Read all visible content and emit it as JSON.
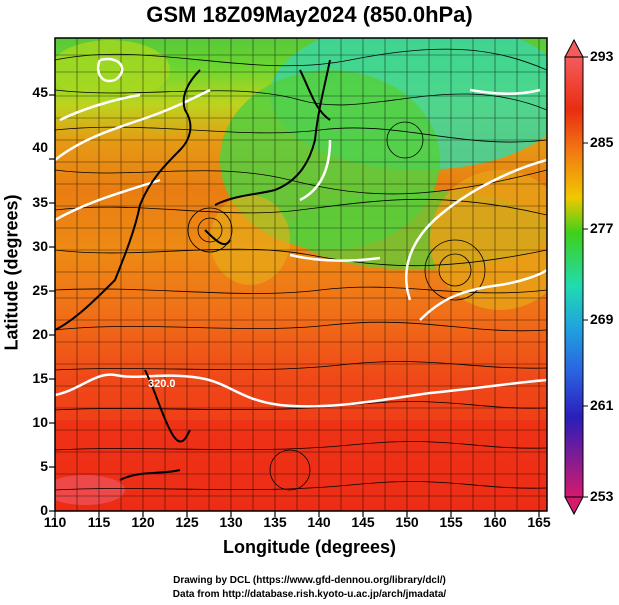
{
  "title": "GSM 18Z09May2024 (850.0hPa)",
  "x_axis": {
    "label": "Longitude (degrees)",
    "ticks": [
      "110",
      "115",
      "120",
      "125",
      "130",
      "135",
      "140",
      "145",
      "150",
      "155",
      "160",
      "165"
    ]
  },
  "y_axis": {
    "label": "Latitude  (degrees)",
    "ticks": [
      "0",
      "5",
      "10",
      "15",
      "20",
      "25",
      "30",
      "35",
      "40",
      "45"
    ]
  },
  "colorbar": {
    "ticks": [
      "293",
      "285",
      "277",
      "269",
      "261",
      "253"
    ],
    "stops": [
      "#d61a6c",
      "#2b1dba",
      "#1fa0e0",
      "#21dbb0",
      "#3fd01a",
      "#f0c800",
      "#f37d12",
      "#e82e12",
      "#f45b5b"
    ]
  },
  "contour_labels": [
    "320.0"
  ],
  "credits": [
    "Drawing by DCL (https://www.gfd-dennou.org/library/dcl/)",
    "Data from http://database.rish.kyoto-u.ac.jp/arch/jmadata/"
  ]
}
